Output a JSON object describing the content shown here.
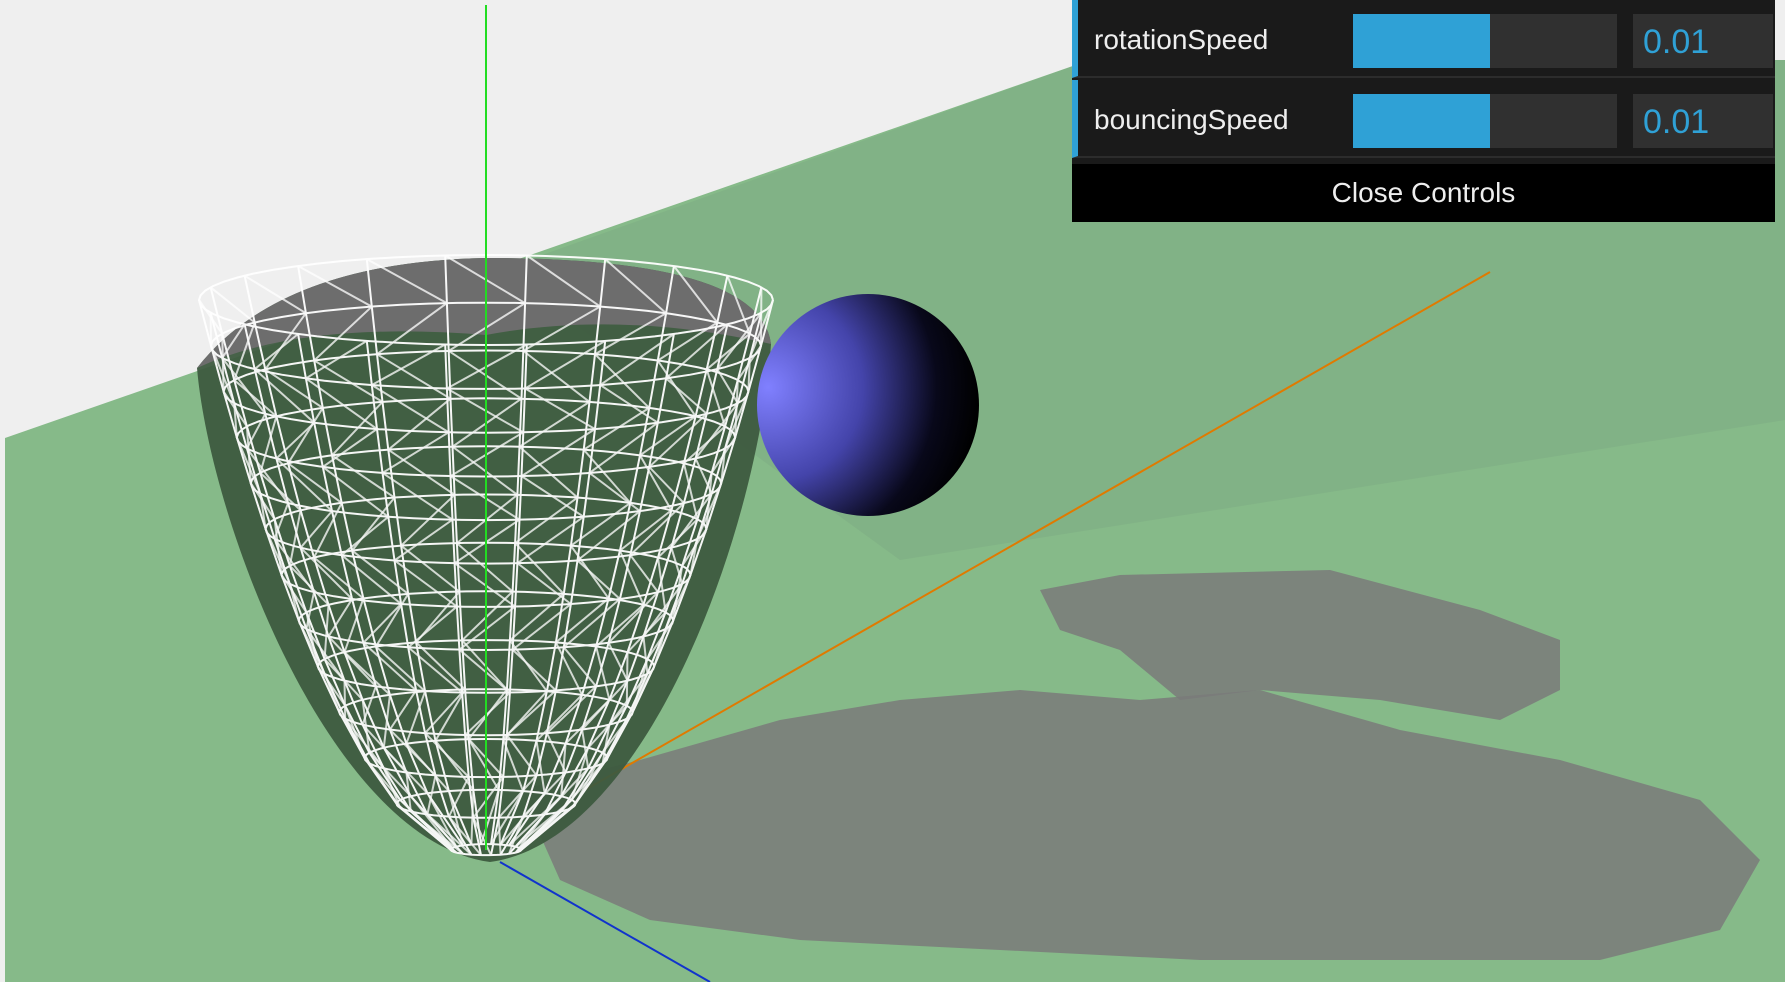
{
  "controls": {
    "items": [
      {
        "label": "rotationSpeed",
        "value": "0.01",
        "fraction": 0.52
      },
      {
        "label": "bouncingSpeed",
        "value": "0.01",
        "fraction": 0.52
      }
    ],
    "close_label": "Close Controls"
  },
  "colors": {
    "sky": "#efefef",
    "ground": "#87bb8a",
    "shadow": "#7a7a7a",
    "sphere": "#7777ff",
    "wireframe": "#ffffff",
    "axis_x": "#ff8800",
    "axis_y": "#22dd22",
    "axis_z": "#1133cc",
    "gui_accent": "#2fa1d6"
  }
}
